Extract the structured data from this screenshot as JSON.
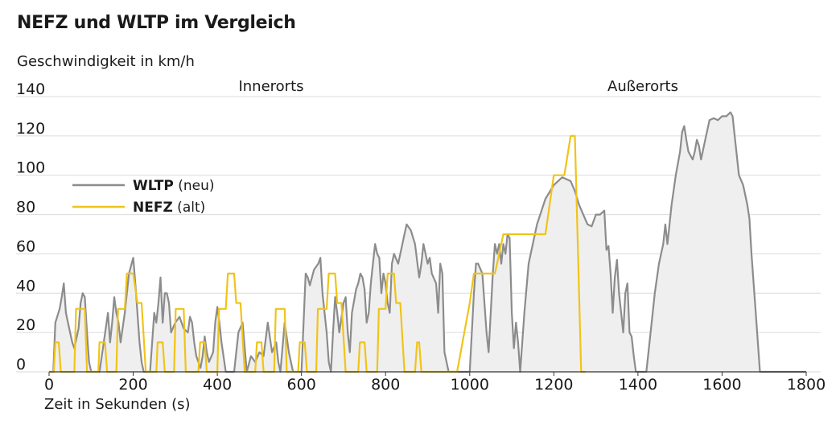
{
  "chart_data": {
    "type": "line",
    "title": "NEFZ und WLTP im Vergleich",
    "ylabel": "Geschwindigkeit in km/h",
    "xlabel": "Zeit in Sekunden (s)",
    "xlim": [
      0,
      1800
    ],
    "ylim": [
      0,
      140
    ],
    "xticks": [
      0,
      200,
      400,
      600,
      800,
      1000,
      1200,
      1400,
      1600,
      1800
    ],
    "yticks": [
      0,
      20,
      40,
      60,
      80,
      100,
      120,
      140
    ],
    "grid": "horizontal",
    "legend_position": "left",
    "regions": [
      {
        "label": "Innerorts",
        "x": 520
      },
      {
        "label": "Außerorts",
        "x": 1380
      }
    ],
    "series": [
      {
        "name": "WLTP",
        "note": "(neu)",
        "color": "#8c8c8c",
        "fill": "#efefef",
        "points": [
          [
            0,
            0
          ],
          [
            10,
            0
          ],
          [
            15,
            25
          ],
          [
            25,
            32
          ],
          [
            30,
            38
          ],
          [
            35,
            45
          ],
          [
            40,
            30
          ],
          [
            45,
            25
          ],
          [
            50,
            20
          ],
          [
            55,
            15
          ],
          [
            60,
            12
          ],
          [
            70,
            22
          ],
          [
            75,
            35
          ],
          [
            80,
            40
          ],
          [
            85,
            38
          ],
          [
            90,
            20
          ],
          [
            95,
            5
          ],
          [
            100,
            0
          ],
          [
            110,
            0
          ],
          [
            120,
            0
          ],
          [
            140,
            30
          ],
          [
            145,
            15
          ],
          [
            150,
            25
          ],
          [
            155,
            38
          ],
          [
            160,
            30
          ],
          [
            165,
            25
          ],
          [
            170,
            15
          ],
          [
            180,
            30
          ],
          [
            185,
            40
          ],
          [
            190,
            50
          ],
          [
            200,
            58
          ],
          [
            205,
            45
          ],
          [
            210,
            30
          ],
          [
            215,
            15
          ],
          [
            220,
            5
          ],
          [
            225,
            0
          ],
          [
            240,
            0
          ],
          [
            250,
            30
          ],
          [
            255,
            25
          ],
          [
            260,
            35
          ],
          [
            265,
            48
          ],
          [
            270,
            25
          ],
          [
            275,
            40
          ],
          [
            280,
            40
          ],
          [
            285,
            35
          ],
          [
            290,
            20
          ],
          [
            300,
            25
          ],
          [
            310,
            28
          ],
          [
            320,
            22
          ],
          [
            330,
            20
          ],
          [
            335,
            28
          ],
          [
            340,
            25
          ],
          [
            345,
            15
          ],
          [
            350,
            8
          ],
          [
            360,
            2
          ],
          [
            365,
            8
          ],
          [
            370,
            18
          ],
          [
            375,
            10
          ],
          [
            380,
            5
          ],
          [
            390,
            10
          ],
          [
            395,
            25
          ],
          [
            400,
            33
          ],
          [
            405,
            25
          ],
          [
            410,
            15
          ],
          [
            420,
            0
          ],
          [
            440,
            0
          ],
          [
            450,
            20
          ],
          [
            460,
            25
          ],
          [
            470,
            0
          ],
          [
            480,
            8
          ],
          [
            490,
            5
          ],
          [
            500,
            10
          ],
          [
            510,
            8
          ],
          [
            520,
            25
          ],
          [
            530,
            10
          ],
          [
            540,
            15
          ],
          [
            545,
            5
          ],
          [
            550,
            0
          ],
          [
            560,
            25
          ],
          [
            570,
            10
          ],
          [
            580,
            0
          ],
          [
            600,
            0
          ],
          [
            610,
            50
          ],
          [
            615,
            48
          ],
          [
            620,
            44
          ],
          [
            630,
            52
          ],
          [
            640,
            55
          ],
          [
            645,
            58
          ],
          [
            650,
            40
          ],
          [
            655,
            30
          ],
          [
            660,
            20
          ],
          [
            665,
            5
          ],
          [
            670,
            0
          ],
          [
            675,
            20
          ],
          [
            680,
            38
          ],
          [
            685,
            30
          ],
          [
            690,
            20
          ],
          [
            700,
            35
          ],
          [
            705,
            38
          ],
          [
            710,
            20
          ],
          [
            715,
            10
          ],
          [
            720,
            30
          ],
          [
            730,
            42
          ],
          [
            735,
            45
          ],
          [
            740,
            50
          ],
          [
            745,
            48
          ],
          [
            750,
            42
          ],
          [
            755,
            25
          ],
          [
            760,
            30
          ],
          [
            765,
            45
          ],
          [
            770,
            55
          ],
          [
            775,
            65
          ],
          [
            780,
            60
          ],
          [
            785,
            58
          ],
          [
            790,
            40
          ],
          [
            795,
            50
          ],
          [
            800,
            45
          ],
          [
            805,
            35
          ],
          [
            810,
            30
          ],
          [
            815,
            55
          ],
          [
            820,
            60
          ],
          [
            830,
            55
          ],
          [
            840,
            65
          ],
          [
            845,
            70
          ],
          [
            850,
            75
          ],
          [
            860,
            72
          ],
          [
            870,
            65
          ],
          [
            880,
            48
          ],
          [
            885,
            55
          ],
          [
            890,
            65
          ],
          [
            900,
            55
          ],
          [
            905,
            58
          ],
          [
            910,
            50
          ],
          [
            920,
            45
          ],
          [
            925,
            30
          ],
          [
            930,
            55
          ],
          [
            935,
            50
          ],
          [
            940,
            10
          ],
          [
            945,
            5
          ],
          [
            950,
            0
          ],
          [
            1000,
            0
          ],
          [
            1010,
            40
          ],
          [
            1015,
            55
          ],
          [
            1020,
            55
          ],
          [
            1030,
            50
          ],
          [
            1040,
            20
          ],
          [
            1045,
            10
          ],
          [
            1050,
            30
          ],
          [
            1055,
            50
          ],
          [
            1060,
            65
          ],
          [
            1065,
            60
          ],
          [
            1070,
            65
          ],
          [
            1075,
            55
          ],
          [
            1080,
            65
          ],
          [
            1085,
            60
          ],
          [
            1090,
            70
          ],
          [
            1095,
            68
          ],
          [
            1100,
            30
          ],
          [
            1105,
            12
          ],
          [
            1110,
            25
          ],
          [
            1115,
            15
          ],
          [
            1120,
            0
          ],
          [
            1130,
            30
          ],
          [
            1140,
            55
          ],
          [
            1160,
            75
          ],
          [
            1180,
            88
          ],
          [
            1200,
            95
          ],
          [
            1220,
            99
          ],
          [
            1240,
            97
          ],
          [
            1250,
            92
          ],
          [
            1260,
            85
          ],
          [
            1270,
            80
          ],
          [
            1280,
            75
          ],
          [
            1290,
            74
          ],
          [
            1300,
            80
          ],
          [
            1310,
            80
          ],
          [
            1320,
            82
          ],
          [
            1325,
            62
          ],
          [
            1330,
            64
          ],
          [
            1335,
            50
          ],
          [
            1340,
            30
          ],
          [
            1345,
            48
          ],
          [
            1350,
            57
          ],
          [
            1355,
            40
          ],
          [
            1360,
            30
          ],
          [
            1365,
            20
          ],
          [
            1370,
            40
          ],
          [
            1375,
            45
          ],
          [
            1380,
            20
          ],
          [
            1385,
            18
          ],
          [
            1390,
            8
          ],
          [
            1395,
            0
          ],
          [
            1420,
            0
          ],
          [
            1430,
            20
          ],
          [
            1440,
            40
          ],
          [
            1450,
            55
          ],
          [
            1460,
            65
          ],
          [
            1465,
            75
          ],
          [
            1470,
            65
          ],
          [
            1480,
            85
          ],
          [
            1490,
            100
          ],
          [
            1500,
            112
          ],
          [
            1505,
            122
          ],
          [
            1510,
            125
          ],
          [
            1515,
            118
          ],
          [
            1520,
            112
          ],
          [
            1530,
            108
          ],
          [
            1535,
            112
          ],
          [
            1540,
            118
          ],
          [
            1545,
            115
          ],
          [
            1550,
            108
          ],
          [
            1560,
            118
          ],
          [
            1570,
            128
          ],
          [
            1580,
            129
          ],
          [
            1590,
            128
          ],
          [
            1600,
            130
          ],
          [
            1610,
            130
          ],
          [
            1620,
            132
          ],
          [
            1625,
            130
          ],
          [
            1630,
            120
          ],
          [
            1640,
            100
          ],
          [
            1650,
            95
          ],
          [
            1660,
            85
          ],
          [
            1665,
            78
          ],
          [
            1670,
            60
          ],
          [
            1680,
            30
          ],
          [
            1690,
            0
          ],
          [
            1800,
            0
          ]
        ]
      },
      {
        "name": "NEFZ",
        "note": "(alt)",
        "color": "#f0c419",
        "points": [
          [
            0,
            0
          ],
          [
            11,
            0
          ],
          [
            15,
            15
          ],
          [
            23,
            15
          ],
          [
            28,
            0
          ],
          [
            60,
            0
          ],
          [
            64,
            32
          ],
          [
            85,
            32
          ],
          [
            90,
            0
          ],
          [
            117,
            0
          ],
          [
            120,
            15
          ],
          [
            133,
            15
          ],
          [
            138,
            0
          ],
          [
            160,
            0
          ],
          [
            164,
            32
          ],
          [
            180,
            32
          ],
          [
            185,
            50
          ],
          [
            200,
            50
          ],
          [
            210,
            35
          ],
          [
            220,
            35
          ],
          [
            230,
            0
          ],
          [
            255,
            0
          ],
          [
            258,
            15
          ],
          [
            270,
            15
          ],
          [
            275,
            0
          ],
          [
            297,
            0
          ],
          [
            301,
            32
          ],
          [
            320,
            32
          ],
          [
            325,
            0
          ],
          [
            355,
            0
          ],
          [
            359,
            15
          ],
          [
            370,
            15
          ],
          [
            375,
            0
          ],
          [
            400,
            0
          ],
          [
            404,
            32
          ],
          [
            420,
            32
          ],
          [
            425,
            50
          ],
          [
            440,
            50
          ],
          [
            445,
            35
          ],
          [
            455,
            35
          ],
          [
            465,
            0
          ],
          [
            490,
            0
          ],
          [
            494,
            15
          ],
          [
            505,
            15
          ],
          [
            510,
            0
          ],
          [
            535,
            0
          ],
          [
            539,
            32
          ],
          [
            560,
            32
          ],
          [
            565,
            0
          ],
          [
            592,
            0
          ],
          [
            596,
            15
          ],
          [
            608,
            15
          ],
          [
            613,
            0
          ],
          [
            635,
            0
          ],
          [
            639,
            32
          ],
          [
            660,
            32
          ],
          [
            665,
            50
          ],
          [
            680,
            50
          ],
          [
            685,
            35
          ],
          [
            695,
            35
          ],
          [
            705,
            0
          ],
          [
            735,
            0
          ],
          [
            739,
            15
          ],
          [
            750,
            15
          ],
          [
            755,
            0
          ],
          [
            780,
            0
          ],
          [
            784,
            32
          ],
          [
            800,
            32
          ],
          [
            805,
            50
          ],
          [
            820,
            50
          ],
          [
            825,
            35
          ],
          [
            835,
            35
          ],
          [
            845,
            0
          ],
          [
            850,
            0
          ],
          [
            870,
            0
          ],
          [
            875,
            15
          ],
          [
            880,
            15
          ],
          [
            885,
            0
          ],
          [
            970,
            0
          ],
          [
            1000,
            35
          ],
          [
            1010,
            50
          ],
          [
            1030,
            50
          ],
          [
            1060,
            50
          ],
          [
            1080,
            70
          ],
          [
            1110,
            70
          ],
          [
            1140,
            70
          ],
          [
            1170,
            70
          ],
          [
            1180,
            70
          ],
          [
            1200,
            100
          ],
          [
            1225,
            100
          ],
          [
            1240,
            120
          ],
          [
            1250,
            120
          ],
          [
            1265,
            0
          ],
          [
            1275,
            0
          ],
          [
            1180,
            0
          ]
        ]
      }
    ]
  }
}
